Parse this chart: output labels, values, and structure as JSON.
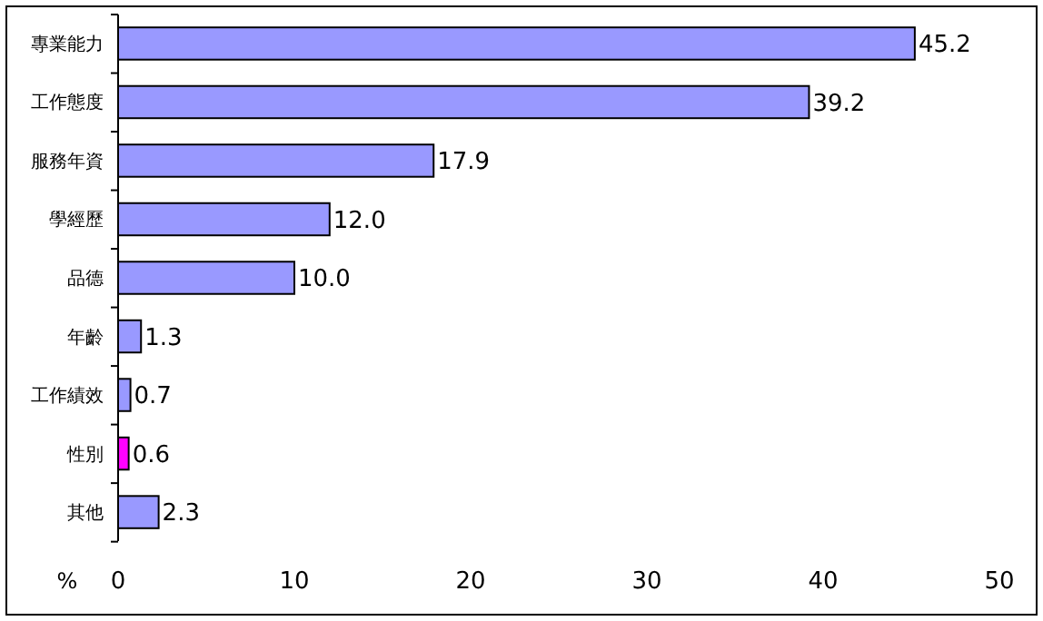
{
  "chart_data": {
    "type": "bar",
    "orientation": "horizontal",
    "xlabel": "%",
    "categories": [
      "專業能力",
      "工作態度",
      "服務年資",
      "學經歷",
      "品德",
      "年齡",
      "工作績效",
      "性別",
      "其他"
    ],
    "values": [
      45.2,
      39.2,
      17.9,
      12.0,
      10.0,
      1.3,
      0.7,
      0.6,
      2.3
    ],
    "colors": [
      "#9999ff",
      "#9999ff",
      "#9999ff",
      "#9999ff",
      "#9999ff",
      "#9999ff",
      "#9999ff",
      "#ff00ff",
      "#9999ff"
    ],
    "value_labels": [
      "45.2",
      "39.2",
      "17.9",
      "12.0",
      "10.0",
      "1.3",
      "0.7",
      "0.6",
      "2.3"
    ],
    "xlim": [
      0,
      50
    ],
    "xticks": [
      0,
      10,
      20,
      30,
      40,
      50
    ]
  }
}
